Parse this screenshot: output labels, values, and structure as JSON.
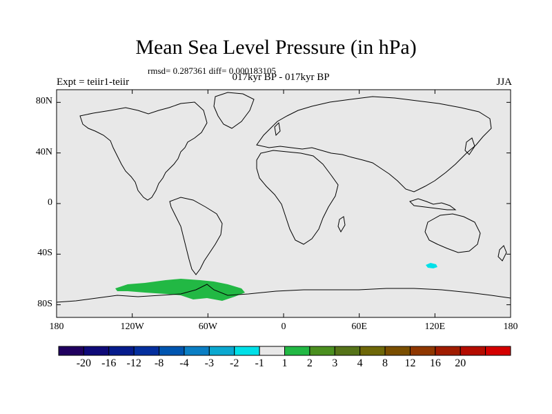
{
  "header": {
    "title": "Mean Sea Level Pressure (in hPa)",
    "stats": "rmsd= 0.287361 diff= 0.000183105",
    "subtitle": "017kyr BP - 017kyr BP",
    "experiment": "Expt = teiir1-teiir",
    "season": "JJA"
  },
  "map": {
    "projection": "cylindrical equidistant",
    "lon_range": [
      -180,
      180
    ],
    "lat_range": [
      -90,
      90
    ],
    "background_color": "#e8e8e8",
    "lat_ticks": [
      {
        "value": 80,
        "label": "80N"
      },
      {
        "value": 40,
        "label": "40N"
      },
      {
        "value": 0,
        "label": "0"
      },
      {
        "value": -40,
        "label": "40S"
      },
      {
        "value": -80,
        "label": "80S"
      }
    ],
    "lon_ticks": [
      {
        "value": -180,
        "label": "180"
      },
      {
        "value": -120,
        "label": "120W"
      },
      {
        "value": -60,
        "label": "60W"
      },
      {
        "value": 0,
        "label": "0"
      },
      {
        "value": 60,
        "label": "60E"
      },
      {
        "value": 120,
        "label": "120E"
      },
      {
        "value": 180,
        "label": "180"
      }
    ],
    "anomalies": [
      {
        "name": "amundsen-bellingshausen-positive",
        "color": "#22b844",
        "level": "1 to 2"
      },
      {
        "name": "southern-ocean-negative",
        "color": "#00e0e8",
        "level": "-2 to -1"
      }
    ]
  },
  "colorbar": {
    "colors": [
      "#20005f",
      "#0f0a78",
      "#061b8c",
      "#042f9e",
      "#0055b0",
      "#0a7ec4",
      "#0ba8d0",
      "#00e0e8",
      "#e8e8e8",
      "#22b844",
      "#4a8f1f",
      "#557318",
      "#6e6708",
      "#7a4e00",
      "#8f3700",
      "#a01c00",
      "#b40c00",
      "#d40000"
    ],
    "labels": [
      "-20",
      "-16",
      "-12",
      "-8",
      "-4",
      "-3",
      "-2",
      "-1",
      "1",
      "2",
      "3",
      "4",
      "8",
      "12",
      "16",
      "20"
    ]
  }
}
